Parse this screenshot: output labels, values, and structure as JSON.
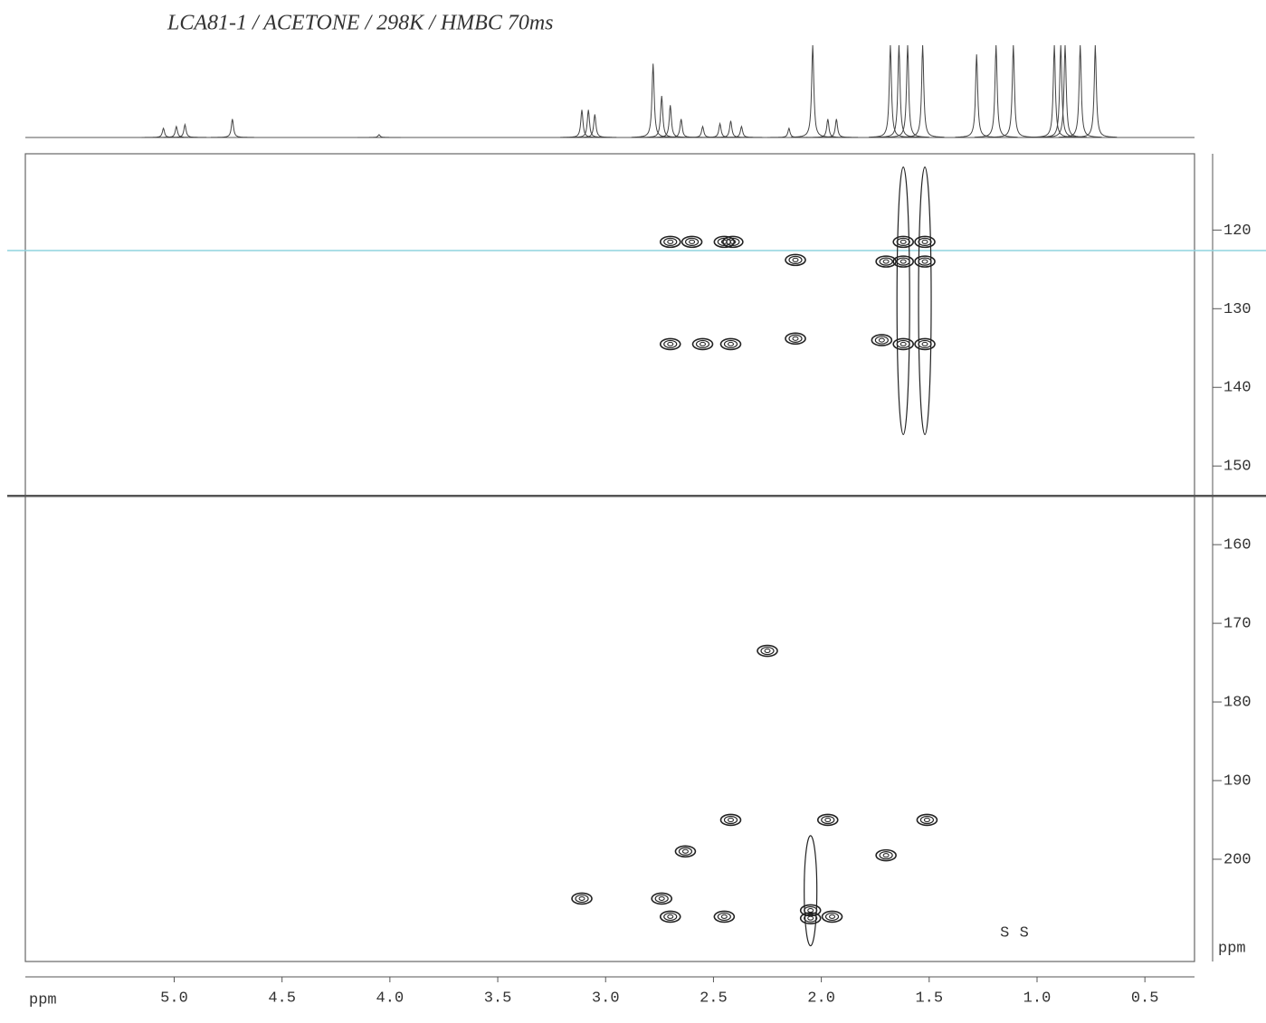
{
  "chart_data": {
    "type": "contour2d",
    "title": "LCA81-1 / ACETONE / 298K / HMBC 70ms",
    "x_label": "ppm",
    "y_label": "ppm",
    "xlim": [
      5.69,
      0.27
    ],
    "ylim": [
      110.3,
      213
    ],
    "xticks": [
      {
        "value": 5,
        "label": "5.0"
      },
      4.5,
      {
        "value": 4,
        "label": "4.0"
      },
      3.5,
      {
        "value": 3,
        "label": "3.0"
      },
      2.5,
      {
        "value": 2,
        "label": "2.0"
      },
      1.5,
      {
        "value": 1,
        "label": "1.0"
      },
      0.5
    ],
    "yticks": [
      120,
      130,
      140,
      150,
      160,
      170,
      180,
      190,
      200
    ],
    "color": "#222",
    "projection": {
      "x": [
        5.05,
        4.99,
        4.95,
        4.73,
        4.05,
        3.11,
        3.08,
        3.05,
        2.78,
        2.74,
        2.7,
        2.65,
        2.55,
        2.47,
        2.42,
        2.37,
        2.15,
        2.04,
        1.97,
        1.93,
        1.68,
        1.64,
        1.6,
        1.53,
        1.28,
        1.19,
        1.11,
        0.92,
        0.89,
        0.87,
        0.8,
        0.73
      ],
      "heights": [
        10,
        12,
        14,
        20,
        3,
        30,
        30,
        25,
        80,
        45,
        35,
        20,
        12,
        15,
        18,
        12,
        10,
        100,
        20,
        20,
        100,
        100,
        100,
        100,
        90,
        100,
        100,
        100,
        100,
        100,
        100,
        100
      ]
    },
    "peaks": {
      "x": [
        2.7,
        2.6,
        2.45,
        2.41,
        2.7,
        2.55,
        2.42,
        2.12,
        2.12,
        1.62,
        1.52,
        1.62,
        1.52,
        1.7,
        1.62,
        1.52,
        1.72,
        2.42,
        1.97,
        1.51,
        2.63,
        1.7,
        3.11,
        2.74,
        2.7,
        2.45,
        2.05,
        2.05,
        1.95,
        2.25
      ],
      "y": [
        121.5,
        121.5,
        121.5,
        121.5,
        134.5,
        134.5,
        134.5,
        123.8,
        133.8,
        121.5,
        121.5,
        124,
        124,
        124,
        134.5,
        134.5,
        134,
        195,
        195,
        195,
        199,
        199.5,
        205,
        205,
        207.3,
        207.3,
        206.5,
        207.5,
        207.3,
        173.5
      ]
    },
    "ridges": {
      "x": [
        1.62,
        1.52,
        2.05
      ],
      "y_from": [
        112,
        112,
        197
      ],
      "y_to": [
        146,
        146,
        211
      ]
    },
    "hlines": [
      {
        "y": 122.6,
        "color": "#8fd3dd"
      },
      {
        "y": 153.8,
        "color": "#555"
      }
    ],
    "annotations": [
      {
        "text": "S",
        "x": 1.15,
        "y": 209.3
      },
      {
        "text": "S",
        "x": 1.06,
        "y": 209.3
      }
    ]
  }
}
